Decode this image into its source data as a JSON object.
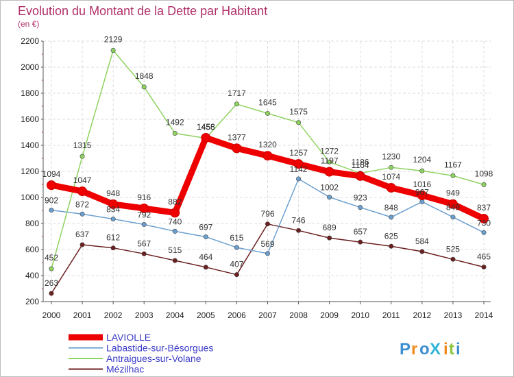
{
  "chart_data": {
    "type": "line",
    "title": "Evolution du Montant de la Dette par Habitant",
    "subtitle": "(en €)",
    "xlabel": "",
    "ylabel": "",
    "ylim": [
      200,
      2200
    ],
    "yticks": [
      "200",
      "400",
      "600",
      "800",
      "1000",
      "1200",
      "1400",
      "1600",
      "1800",
      "2000",
      "2200"
    ],
    "grid": true,
    "legend_position": "bottom-left",
    "categories": [
      "2000",
      "2001",
      "2002",
      "2003",
      "2004",
      "2005",
      "2006",
      "2007",
      "2008",
      "2009",
      "2010",
      "2011",
      "2012",
      "2013",
      "2014"
    ],
    "series": [
      {
        "name": "Mézilhac",
        "color": "#6b1f1f",
        "values": [
          263,
          637,
          612,
          567,
          515,
          464,
          407,
          796,
          746,
          689,
          657,
          625,
          584,
          525,
          465
        ]
      },
      {
        "name": "Labastide-sur-Bésorgues",
        "color": "#6a9fd0",
        "values": [
          902,
          872,
          834,
          792,
          740,
          697,
          615,
          569,
          1142,
          1002,
          923,
          848,
          967,
          849,
          730
        ]
      },
      {
        "name": "Antraigues-sur-Volane",
        "color": "#8ed35f",
        "values": [
          452,
          1315,
          2129,
          1848,
          1492,
          1455,
          1717,
          1645,
          1575,
          1272,
          1186,
          1230,
          1204,
          1167,
          1098
        ]
      },
      {
        "name": "LAVIOLLE",
        "color": "#ee0000",
        "values": [
          1094,
          1047,
          948,
          916,
          882,
          1458,
          1377,
          1320,
          1257,
          1197,
          1164,
          1074,
          1016,
          949,
          837
        ]
      }
    ],
    "legend_order": [
      "LAVIOLLE",
      "Labastide-sur-Bésorgues",
      "Antraigues-sur-Volane",
      "Mézilhac"
    ]
  },
  "brand": {
    "text": "ProXiti",
    "letters": [
      "P",
      "r",
      "o",
      "X",
      "i",
      "t",
      "i"
    ],
    "colors": [
      "#3d8fd0",
      "#f08a1c",
      "#3d8fd0",
      "#2fb5d8",
      "#f08a1c",
      "#8cc63f",
      "#3d8fd0"
    ]
  }
}
